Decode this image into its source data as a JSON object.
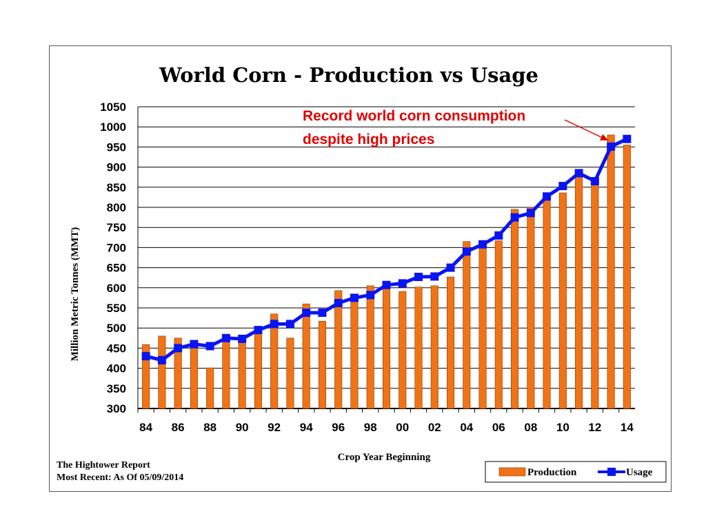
{
  "colors": {
    "production": "#f07318",
    "production_border": "#8a3b00",
    "usage": "#0a14f0",
    "annotation": "#e00000",
    "grid": "#000000"
  },
  "chart_data": {
    "type": "bar",
    "title": "World Corn - Production vs Usage",
    "xlabel": "Crop Year Beginning",
    "ylabel": "Million Metric Tonnes (MMT)",
    "ylim": [
      300,
      1050
    ],
    "yticks": [
      300,
      350,
      400,
      450,
      500,
      550,
      600,
      650,
      700,
      750,
      800,
      850,
      900,
      950,
      1000,
      1050
    ],
    "grid": true,
    "legend_position": "bottom-right",
    "categories": [
      "84",
      "85",
      "86",
      "87",
      "88",
      "89",
      "90",
      "91",
      "92",
      "93",
      "94",
      "95",
      "96",
      "97",
      "98",
      "99",
      "00",
      "01",
      "02",
      "03",
      "04",
      "05",
      "06",
      "07",
      "08",
      "09",
      "10",
      "11",
      "12",
      "13",
      "14"
    ],
    "xtick_labels": [
      "84",
      "86",
      "88",
      "90",
      "92",
      "94",
      "96",
      "98",
      "00",
      "02",
      "04",
      "06",
      "08",
      "10",
      "12",
      "14"
    ],
    "series": [
      {
        "name": "Production",
        "kind": "bar",
        "values": [
          459,
          480,
          475,
          450,
          401,
          470,
          478,
          488,
          535,
          475,
          560,
          517,
          593,
          576,
          605,
          607,
          591,
          602,
          605,
          627,
          715,
          700,
          717,
          795,
          800,
          820,
          836,
          888,
          865,
          980,
          955
        ]
      },
      {
        "name": "Usage",
        "kind": "line",
        "values": [
          430,
          420,
          450,
          460,
          455,
          475,
          473,
          495,
          510,
          510,
          538,
          538,
          562,
          575,
          582,
          607,
          611,
          627,
          628,
          650,
          690,
          708,
          730,
          775,
          786,
          827,
          853,
          885,
          865,
          951,
          970
        ]
      }
    ],
    "annotation": {
      "lines": [
        "Record world corn consumption",
        "despite high prices"
      ],
      "points_to_category": "13"
    }
  },
  "footer": {
    "source_line1": "The Hightower Report",
    "source_line2": "Most Recent: As Of 05/09/2014"
  }
}
